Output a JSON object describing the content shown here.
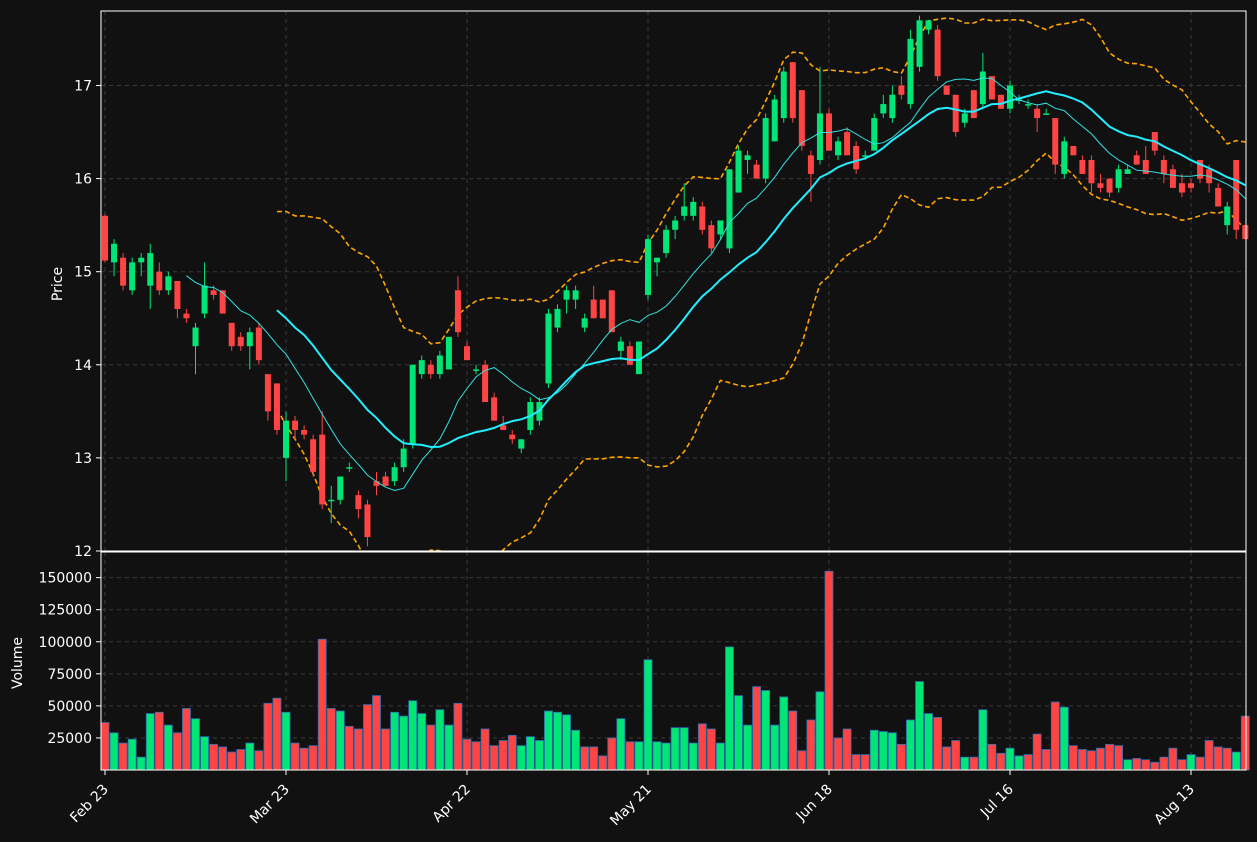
{
  "chart_data": {
    "type": "candlestick",
    "theme": {
      "background": "#111111",
      "grid": "#3a3a3a",
      "text": "#ffffff",
      "up": "#00e676",
      "down": "#ff4444",
      "ma_fast": "#33e0e0",
      "ma_slow": "#22eeff",
      "bands": "#ffa500"
    },
    "xtick_labels": [
      "Feb 23",
      "Mar 23",
      "Apr 22",
      "May 21",
      "Jun 18",
      "Jul 16",
      "Aug 13"
    ],
    "xtick_index": [
      0,
      20,
      40,
      60,
      80,
      100,
      120
    ],
    "price_panel": {
      "ylabel": "Price",
      "ylim": [
        12,
        17.8
      ],
      "yticks": [
        12,
        13,
        14,
        15,
        16,
        17
      ]
    },
    "volume_panel": {
      "ylabel": "Volume",
      "ylim": [
        0,
        170000
      ],
      "yticks": [
        25000,
        50000,
        75000,
        100000,
        125000,
        150000
      ]
    },
    "ohlc": [
      [
        15.6,
        15.62,
        15.1,
        15.12
      ],
      [
        15.1,
        15.35,
        14.95,
        15.3
      ],
      [
        15.15,
        15.2,
        14.8,
        14.85
      ],
      [
        14.8,
        15.15,
        14.75,
        15.1
      ],
      [
        15.1,
        15.2,
        14.95,
        15.15
      ],
      [
        14.85,
        15.3,
        14.6,
        15.2
      ],
      [
        15.0,
        15.1,
        14.75,
        14.8
      ],
      [
        14.8,
        15.0,
        14.75,
        14.95
      ],
      [
        14.9,
        14.9,
        14.5,
        14.6
      ],
      [
        14.55,
        14.6,
        14.45,
        14.5
      ],
      [
        14.2,
        14.45,
        13.9,
        14.4
      ],
      [
        14.55,
        15.1,
        14.5,
        14.85
      ],
      [
        14.8,
        14.85,
        14.7,
        14.75
      ],
      [
        14.8,
        14.8,
        14.55,
        14.55
      ],
      [
        14.45,
        14.45,
        14.15,
        14.2
      ],
      [
        14.3,
        14.35,
        14.15,
        14.2
      ],
      [
        14.2,
        14.4,
        13.95,
        14.35
      ],
      [
        14.4,
        14.45,
        14.0,
        14.05
      ],
      [
        13.9,
        13.9,
        13.4,
        13.5
      ],
      [
        13.8,
        13.8,
        13.25,
        13.3
      ],
      [
        13.0,
        13.5,
        12.75,
        13.4
      ],
      [
        13.4,
        13.45,
        13.2,
        13.3
      ],
      [
        13.3,
        13.35,
        13.2,
        13.25
      ],
      [
        13.2,
        13.25,
        12.8,
        12.85
      ],
      [
        13.25,
        13.5,
        12.45,
        12.5
      ],
      [
        12.55,
        12.7,
        12.3,
        12.55
      ],
      [
        12.55,
        12.8,
        12.5,
        12.8
      ],
      [
        12.9,
        12.95,
        12.85,
        12.9
      ],
      [
        12.6,
        12.65,
        12.35,
        12.45
      ],
      [
        12.5,
        12.55,
        12.05,
        12.15
      ],
      [
        12.75,
        12.85,
        12.6,
        12.7
      ],
      [
        12.8,
        12.85,
        12.7,
        12.7
      ],
      [
        12.75,
        12.95,
        12.7,
        12.9
      ],
      [
        12.9,
        13.2,
        12.85,
        13.1
      ],
      [
        13.15,
        14.0,
        13.1,
        14.0
      ],
      [
        13.9,
        14.1,
        13.85,
        14.05
      ],
      [
        14.0,
        14.05,
        13.85,
        13.9
      ],
      [
        13.9,
        14.15,
        13.85,
        14.1
      ],
      [
        13.95,
        14.3,
        13.95,
        14.3
      ],
      [
        14.8,
        14.95,
        14.3,
        14.35
      ],
      [
        14.2,
        14.25,
        14.05,
        14.05
      ],
      [
        13.95,
        14.0,
        13.9,
        13.95
      ],
      [
        14.0,
        14.05,
        13.6,
        13.6
      ],
      [
        13.65,
        13.7,
        13.4,
        13.4
      ],
      [
        13.35,
        13.45,
        13.3,
        13.3
      ],
      [
        13.25,
        13.3,
        13.15,
        13.2
      ],
      [
        13.1,
        13.2,
        13.05,
        13.2
      ],
      [
        13.3,
        13.65,
        13.25,
        13.6
      ],
      [
        13.4,
        13.65,
        13.35,
        13.6
      ],
      [
        13.8,
        14.6,
        13.75,
        14.55
      ],
      [
        14.4,
        14.65,
        14.35,
        14.6
      ],
      [
        14.7,
        14.85,
        14.55,
        14.8
      ],
      [
        14.7,
        14.85,
        14.6,
        14.8
      ],
      [
        14.4,
        14.55,
        14.35,
        14.5
      ],
      [
        14.7,
        14.85,
        14.5,
        14.5
      ],
      [
        14.7,
        14.7,
        14.5,
        14.5
      ],
      [
        14.8,
        14.8,
        14.35,
        14.35
      ],
      [
        14.15,
        14.3,
        14.05,
        14.25
      ],
      [
        14.2,
        14.25,
        14.0,
        14.0
      ],
      [
        13.9,
        14.25,
        13.9,
        14.25
      ],
      [
        14.75,
        15.4,
        14.7,
        15.35
      ],
      [
        15.1,
        15.15,
        14.95,
        15.15
      ],
      [
        15.2,
        15.5,
        15.15,
        15.45
      ],
      [
        15.45,
        15.6,
        15.35,
        15.55
      ],
      [
        15.6,
        15.95,
        15.55,
        15.7
      ],
      [
        15.6,
        15.8,
        15.55,
        15.75
      ],
      [
        15.7,
        15.75,
        15.4,
        15.45
      ],
      [
        15.5,
        15.55,
        15.2,
        15.25
      ],
      [
        15.4,
        15.55,
        15.35,
        15.55
      ],
      [
        15.25,
        16.1,
        15.2,
        16.1
      ],
      [
        15.85,
        16.35,
        15.85,
        16.3
      ],
      [
        16.2,
        16.3,
        16.05,
        16.25
      ],
      [
        16.15,
        16.2,
        16.0,
        16.0
      ],
      [
        16.0,
        16.7,
        15.95,
        16.65
      ],
      [
        16.4,
        16.9,
        16.4,
        16.85
      ],
      [
        16.65,
        17.2,
        16.6,
        17.15
      ],
      [
        17.25,
        17.25,
        16.6,
        16.65
      ],
      [
        16.95,
        16.95,
        16.3,
        16.35
      ],
      [
        16.25,
        16.3,
        15.75,
        16.05
      ],
      [
        16.2,
        17.2,
        16.15,
        16.7
      ],
      [
        16.7,
        16.75,
        16.3,
        16.3
      ],
      [
        16.25,
        16.45,
        16.2,
        16.4
      ],
      [
        16.5,
        16.55,
        16.25,
        16.25
      ],
      [
        16.35,
        16.4,
        16.05,
        16.1
      ],
      [
        16.25,
        16.3,
        16.2,
        16.25
      ],
      [
        16.3,
        16.7,
        16.3,
        16.65
      ],
      [
        16.7,
        16.9,
        16.65,
        16.8
      ],
      [
        16.65,
        17.0,
        16.6,
        16.9
      ],
      [
        17.0,
        17.1,
        16.85,
        16.9
      ],
      [
        16.8,
        17.6,
        16.75,
        17.5
      ],
      [
        17.2,
        17.75,
        17.15,
        17.7
      ],
      [
        17.6,
        17.7,
        17.55,
        17.7
      ],
      [
        17.6,
        17.65,
        17.05,
        17.1
      ],
      [
        17.0,
        17.0,
        16.9,
        16.9
      ],
      [
        16.9,
        16.9,
        16.45,
        16.5
      ],
      [
        16.6,
        16.75,
        16.55,
        16.7
      ],
      [
        16.95,
        16.95,
        16.65,
        16.65
      ],
      [
        16.8,
        17.35,
        16.75,
        17.15
      ],
      [
        17.1,
        17.1,
        16.85,
        16.85
      ],
      [
        16.9,
        16.9,
        16.75,
        16.75
      ],
      [
        16.75,
        17.05,
        16.7,
        17.0
      ],
      [
        16.85,
        16.9,
        16.8,
        16.85
      ],
      [
        16.8,
        16.85,
        16.75,
        16.8
      ],
      [
        16.75,
        16.8,
        16.5,
        16.65
      ],
      [
        16.7,
        16.75,
        16.7,
        16.7
      ],
      [
        16.65,
        16.65,
        16.05,
        16.15
      ],
      [
        16.05,
        16.45,
        16.0,
        16.4
      ],
      [
        16.35,
        16.35,
        16.25,
        16.25
      ],
      [
        16.2,
        16.25,
        16.05,
        16.05
      ],
      [
        16.2,
        16.25,
        15.85,
        15.95
      ],
      [
        15.95,
        16.05,
        15.85,
        15.9
      ],
      [
        16.0,
        16.0,
        15.8,
        15.85
      ],
      [
        15.9,
        16.15,
        15.85,
        16.1
      ],
      [
        16.05,
        16.15,
        16.05,
        16.1
      ],
      [
        16.25,
        16.3,
        16.15,
        16.15
      ],
      [
        16.2,
        16.35,
        16.05,
        16.05
      ],
      [
        16.5,
        16.5,
        16.25,
        16.3
      ],
      [
        16.2,
        16.25,
        15.95,
        16.05
      ],
      [
        16.1,
        16.15,
        15.9,
        15.9
      ],
      [
        15.95,
        16.05,
        15.8,
        15.85
      ],
      [
        15.95,
        16.0,
        15.85,
        15.9
      ],
      [
        16.2,
        16.2,
        15.95,
        16.0
      ],
      [
        16.1,
        16.15,
        15.85,
        15.95
      ],
      [
        15.9,
        15.95,
        15.7,
        15.7
      ],
      [
        15.5,
        15.75,
        15.4,
        15.7
      ],
      [
        16.2,
        16.2,
        15.35,
        15.45
      ],
      [
        15.5,
        15.5,
        15.35,
        15.35
      ]
    ],
    "volume": [
      37000,
      29000,
      21000,
      24000,
      10000,
      44000,
      45000,
      35000,
      29000,
      48000,
      40000,
      26000,
      20000,
      18000,
      14000,
      16000,
      21000,
      15000,
      52000,
      56000,
      45000,
      21000,
      17000,
      19000,
      102000,
      48000,
      46000,
      34000,
      32000,
      51000,
      58000,
      32000,
      45000,
      42000,
      54000,
      44000,
      35000,
      47000,
      35000,
      52000,
      24000,
      22000,
      32000,
      19000,
      23000,
      27000,
      19000,
      26000,
      23000,
      46000,
      45000,
      43000,
      31000,
      18000,
      18000,
      11000,
      25000,
      40000,
      22000,
      22000,
      86000,
      22000,
      21000,
      33000,
      33000,
      21000,
      36000,
      32000,
      21000,
      96000,
      58000,
      35000,
      65000,
      62000,
      35000,
      57000,
      46000,
      15000,
      39000,
      61000,
      155000,
      25000,
      32000,
      12000,
      12000,
      31000,
      30000,
      29000,
      20000,
      39000,
      69000,
      44000,
      41000,
      18000,
      23000,
      10000,
      10000,
      47000,
      20000,
      13000,
      17000,
      11000,
      12000,
      28000,
      16000,
      53000,
      49000,
      19000,
      16000,
      15000,
      17000,
      20000,
      19000,
      8000,
      9000,
      8000,
      6000,
      10000,
      17000,
      8000,
      12000,
      10000,
      23000,
      18000,
      17000,
      14000,
      42000
    ],
    "volume_up": [
      false,
      true,
      false,
      true,
      true,
      true,
      false,
      true,
      false,
      false,
      true,
      true,
      false,
      false,
      false,
      false,
      true,
      false,
      false,
      false,
      true,
      false,
      false,
      false,
      false,
      false,
      true,
      false,
      false,
      false,
      false,
      false,
      true,
      true,
      true,
      true,
      false,
      true,
      true,
      false,
      false,
      false,
      false,
      false,
      false,
      false,
      true,
      true,
      true,
      true,
      true,
      true,
      true,
      false,
      false,
      false,
      false,
      true,
      false,
      true,
      true,
      true,
      true,
      true,
      true,
      true,
      false,
      false,
      true,
      true,
      true,
      true,
      false,
      true,
      true,
      true,
      false,
      false,
      false,
      true,
      false,
      false,
      false,
      false,
      false,
      true,
      true,
      true,
      false,
      true,
      true,
      true,
      false,
      false,
      false,
      true,
      false,
      true,
      false,
      false,
      true,
      true,
      false,
      false,
      false,
      false,
      true,
      false,
      false,
      false,
      false,
      false,
      false,
      true,
      false,
      false,
      false,
      false,
      false,
      false,
      true,
      false,
      false,
      false,
      false,
      true,
      false
    ]
  }
}
